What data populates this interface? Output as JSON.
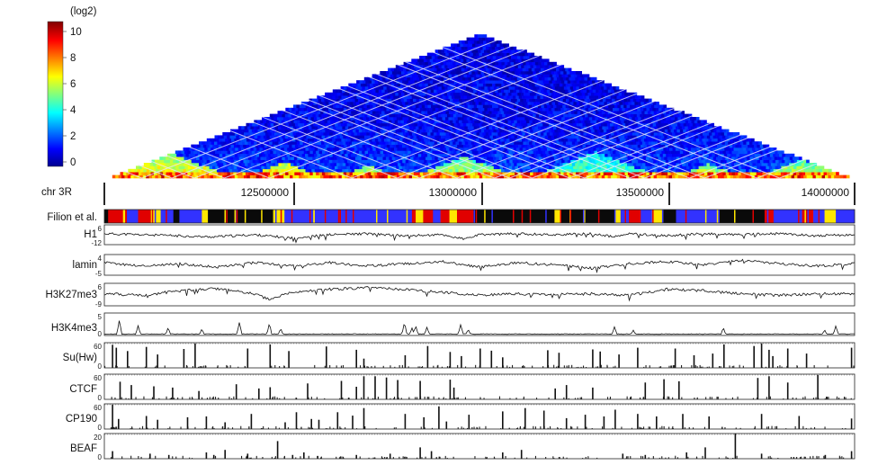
{
  "colorbar": {
    "unit": "(log2)",
    "ticks": [
      "10",
      "8",
      "6",
      "4",
      "2",
      "0"
    ]
  },
  "chromosome": {
    "label": "chr 3R",
    "coordinates": [
      "12500000",
      "13000000",
      "13500000",
      "14000000"
    ]
  },
  "chart_data": [
    {
      "type": "heatmap",
      "title": "",
      "unit": "(log2)",
      "range": [
        0,
        10
      ],
      "domains": [
        {
          "start": 0.0,
          "end": 0.18,
          "max": 7
        },
        {
          "start": 0.18,
          "end": 0.3,
          "max": 7
        },
        {
          "start": 0.3,
          "end": 0.4,
          "max": 6
        },
        {
          "start": 0.4,
          "end": 0.56,
          "max": 6
        },
        {
          "start": 0.56,
          "end": 0.75,
          "max": 5
        },
        {
          "start": 0.75,
          "end": 0.86,
          "max": 6
        },
        {
          "start": 0.86,
          "end": 1.0,
          "max": 6
        }
      ]
    },
    {
      "type": "bar",
      "name": "Filion et al.",
      "colors": [
        "#e10000",
        "#ffe600",
        "#3232ff",
        "#0a0a0a",
        "#7a7a7a"
      ],
      "segments": [
        {
          "start": 0.0,
          "end": 0.005,
          "c": 3
        },
        {
          "start": 0.005,
          "end": 0.03,
          "c": 0
        },
        {
          "start": 0.03,
          "end": 0.045,
          "c": 2
        },
        {
          "start": 0.045,
          "end": 0.062,
          "c": 0
        },
        {
          "start": 0.062,
          "end": 0.075,
          "c": 1
        },
        {
          "start": 0.075,
          "end": 0.092,
          "c": 2
        },
        {
          "start": 0.092,
          "end": 0.1,
          "c": 3
        },
        {
          "start": 0.1,
          "end": 0.13,
          "c": 2
        },
        {
          "start": 0.13,
          "end": 0.138,
          "c": 1
        },
        {
          "start": 0.138,
          "end": 0.155,
          "c": 3
        },
        {
          "start": 0.155,
          "end": 0.225,
          "c": 3
        },
        {
          "start": 0.225,
          "end": 0.24,
          "c": 1
        },
        {
          "start": 0.24,
          "end": 0.41,
          "c": 2
        },
        {
          "start": 0.41,
          "end": 0.415,
          "c": 0
        },
        {
          "start": 0.415,
          "end": 0.425,
          "c": 1
        },
        {
          "start": 0.425,
          "end": 0.438,
          "c": 0
        },
        {
          "start": 0.438,
          "end": 0.448,
          "c": 2
        },
        {
          "start": 0.448,
          "end": 0.46,
          "c": 0
        },
        {
          "start": 0.46,
          "end": 0.47,
          "c": 1
        },
        {
          "start": 0.47,
          "end": 0.492,
          "c": 0
        },
        {
          "start": 0.492,
          "end": 0.6,
          "c": 3
        },
        {
          "start": 0.6,
          "end": 0.608,
          "c": 1
        },
        {
          "start": 0.608,
          "end": 0.68,
          "c": 3
        },
        {
          "start": 0.68,
          "end": 0.688,
          "c": 1
        },
        {
          "start": 0.688,
          "end": 0.7,
          "c": 2
        },
        {
          "start": 0.7,
          "end": 0.715,
          "c": 0
        },
        {
          "start": 0.715,
          "end": 0.73,
          "c": 2
        },
        {
          "start": 0.73,
          "end": 0.745,
          "c": 1
        },
        {
          "start": 0.745,
          "end": 0.762,
          "c": 3
        },
        {
          "start": 0.762,
          "end": 0.82,
          "c": 2
        },
        {
          "start": 0.82,
          "end": 0.88,
          "c": 3
        },
        {
          "start": 0.88,
          "end": 0.892,
          "c": 0
        },
        {
          "start": 0.892,
          "end": 0.93,
          "c": 2
        },
        {
          "start": 0.93,
          "end": 0.945,
          "c": 0
        },
        {
          "start": 0.945,
          "end": 0.96,
          "c": 2
        },
        {
          "start": 0.96,
          "end": 0.975,
          "c": 1
        },
        {
          "start": 0.975,
          "end": 1.0,
          "c": 2
        }
      ]
    },
    {
      "type": "line",
      "name": "H1",
      "ylim": [
        -12,
        6
      ],
      "ticks": [
        "6",
        "-12"
      ],
      "keypoints": [
        [
          0,
          -2
        ],
        [
          0.05,
          -3
        ],
        [
          0.1,
          -4
        ],
        [
          0.14,
          -5
        ],
        [
          0.2,
          -3
        ],
        [
          0.25,
          -6
        ],
        [
          0.3,
          -3
        ],
        [
          0.35,
          -2
        ],
        [
          0.4,
          -4
        ],
        [
          0.45,
          -3
        ],
        [
          0.48,
          -7
        ],
        [
          0.5,
          -3
        ],
        [
          0.55,
          -2
        ],
        [
          0.6,
          -3
        ],
        [
          0.65,
          -2
        ],
        [
          0.68,
          -5
        ],
        [
          0.7,
          -2
        ],
        [
          0.75,
          -4
        ],
        [
          0.8,
          -2
        ],
        [
          0.85,
          -3
        ],
        [
          0.9,
          -2
        ],
        [
          0.95,
          -4
        ],
        [
          1,
          -3
        ]
      ]
    },
    {
      "type": "line",
      "name": "lamin",
      "ylim": [
        -5,
        4
      ],
      "ticks": [
        "4",
        "-5"
      ],
      "keypoints": [
        [
          0,
          0.5
        ],
        [
          0.05,
          -1
        ],
        [
          0.1,
          0
        ],
        [
          0.15,
          -1.5
        ],
        [
          0.2,
          0.5
        ],
        [
          0.25,
          -1
        ],
        [
          0.3,
          0.5
        ],
        [
          0.35,
          -1
        ],
        [
          0.4,
          0
        ],
        [
          0.45,
          1
        ],
        [
          0.5,
          -1.5
        ],
        [
          0.55,
          0.5
        ],
        [
          0.6,
          -0.5
        ],
        [
          0.65,
          -2
        ],
        [
          0.7,
          0
        ],
        [
          0.75,
          1
        ],
        [
          0.8,
          -0.5
        ],
        [
          0.85,
          1.5
        ],
        [
          0.9,
          0
        ],
        [
          0.95,
          -1
        ],
        [
          1,
          0
        ]
      ]
    },
    {
      "type": "line",
      "name": "H3K27me3",
      "ylim": [
        -9,
        6
      ],
      "ticks": [
        "6",
        "-9"
      ],
      "keypoints": [
        [
          0,
          -1
        ],
        [
          0.05,
          -2
        ],
        [
          0.1,
          1
        ],
        [
          0.15,
          2.5
        ],
        [
          0.2,
          -1
        ],
        [
          0.22,
          -5
        ],
        [
          0.25,
          0
        ],
        [
          0.3,
          2
        ],
        [
          0.35,
          3
        ],
        [
          0.4,
          2
        ],
        [
          0.45,
          0
        ],
        [
          0.5,
          -2
        ],
        [
          0.55,
          -1
        ],
        [
          0.6,
          -1.5
        ],
        [
          0.65,
          -1
        ],
        [
          0.7,
          -2
        ],
        [
          0.75,
          2
        ],
        [
          0.8,
          1
        ],
        [
          0.85,
          -1
        ],
        [
          0.9,
          -2
        ],
        [
          0.95,
          -1
        ],
        [
          1,
          -1
        ]
      ]
    },
    {
      "type": "line",
      "name": "H3K4me3",
      "ylim": [
        0,
        5
      ],
      "ticks": [
        "5",
        "0"
      ],
      "baseline": 0.25,
      "peaks": [
        [
          0.02,
          3.5
        ],
        [
          0.045,
          2.2
        ],
        [
          0.085,
          1.8
        ],
        [
          0.13,
          1.5
        ],
        [
          0.18,
          3.0
        ],
        [
          0.22,
          2.8
        ],
        [
          0.235,
          1.6
        ],
        [
          0.4,
          3.0
        ],
        [
          0.41,
          1.7
        ],
        [
          0.415,
          2.2
        ],
        [
          0.43,
          1.9
        ],
        [
          0.475,
          2.5
        ],
        [
          0.485,
          1.4
        ],
        [
          0.68,
          2.0
        ],
        [
          0.705,
          1.2
        ],
        [
          0.825,
          1.8
        ],
        [
          0.96,
          1.3
        ],
        [
          0.975,
          2.2
        ]
      ]
    },
    {
      "type": "bar",
      "name": "Su(Hw)",
      "ylim": [
        0,
        60
      ],
      "ticks": [
        "60",
        "0"
      ],
      "x": [
        0.01,
        0.015,
        0.03,
        0.055,
        0.07,
        0.105,
        0.12,
        0.19,
        0.22,
        0.245,
        0.295,
        0.335,
        0.345,
        0.4,
        0.43,
        0.46,
        0.475,
        0.5,
        0.515,
        0.53,
        0.59,
        0.605,
        0.65,
        0.66,
        0.685,
        0.71,
        0.76,
        0.785,
        0.81,
        0.825,
        0.865,
        0.875,
        0.885,
        0.89,
        0.91,
        0.935,
        0.995
      ],
      "values": [
        55,
        48,
        40,
        50,
        32,
        45,
        58,
        46,
        56,
        40,
        51,
        43,
        22,
        30,
        52,
        38,
        28,
        46,
        41,
        25,
        42,
        36,
        44,
        39,
        32,
        48,
        46,
        30,
        34,
        56,
        52,
        58,
        43,
        28,
        46,
        34,
        48
      ]
    },
    {
      "type": "bar",
      "name": "CTCF",
      "ylim": [
        0,
        60
      ],
      "ticks": [
        "60",
        "0"
      ],
      "x": [
        0.02,
        0.035,
        0.065,
        0.09,
        0.125,
        0.175,
        0.205,
        0.22,
        0.27,
        0.315,
        0.335,
        0.345,
        0.36,
        0.375,
        0.39,
        0.42,
        0.46,
        0.465,
        0.6,
        0.615,
        0.65,
        0.72,
        0.745,
        0.765,
        0.87,
        0.885,
        0.91,
        0.95
      ],
      "values": [
        42,
        34,
        31,
        28,
        20,
        36,
        26,
        29,
        38,
        44,
        30,
        55,
        55,
        52,
        46,
        44,
        47,
        28,
        26,
        34,
        28,
        40,
        48,
        43,
        51,
        55,
        40,
        58
      ]
    },
    {
      "type": "bar",
      "name": "CP190",
      "ylim": [
        0,
        60
      ],
      "ticks": [
        "60",
        "0"
      ],
      "x": [
        0.01,
        0.018,
        0.055,
        0.07,
        0.11,
        0.135,
        0.16,
        0.195,
        0.24,
        0.255,
        0.275,
        0.285,
        0.31,
        0.33,
        0.345,
        0.4,
        0.425,
        0.445,
        0.455,
        0.485,
        0.53,
        0.56,
        0.585,
        0.615,
        0.64,
        0.665,
        0.68,
        0.71,
        0.735,
        0.77,
        0.805,
        0.875,
        0.925,
        0.995
      ],
      "values": [
        58,
        24,
        31,
        22,
        28,
        30,
        16,
        36,
        16,
        40,
        24,
        22,
        40,
        32,
        50,
        36,
        28,
        54,
        18,
        34,
        42,
        50,
        44,
        26,
        34,
        30,
        46,
        36,
        30,
        36,
        30,
        36,
        31,
        25
      ]
    },
    {
      "type": "bar",
      "name": "BEAF",
      "ylim": [
        0,
        20
      ],
      "ticks": [
        "20",
        "0"
      ],
      "x": [
        0.01,
        0.06,
        0.085,
        0.135,
        0.145,
        0.16,
        0.19,
        0.23,
        0.25,
        0.265,
        0.335,
        0.38,
        0.42,
        0.435,
        0.53,
        0.555,
        0.69,
        0.72,
        0.775,
        0.8,
        0.84,
        0.875,
        0.96,
        0.995
      ],
      "values": [
        6,
        4,
        3,
        5,
        3,
        7,
        4,
        14,
        3,
        5,
        3,
        4,
        9,
        6,
        5,
        7,
        4,
        3,
        5,
        9,
        20,
        4,
        3,
        6
      ]
    }
  ]
}
